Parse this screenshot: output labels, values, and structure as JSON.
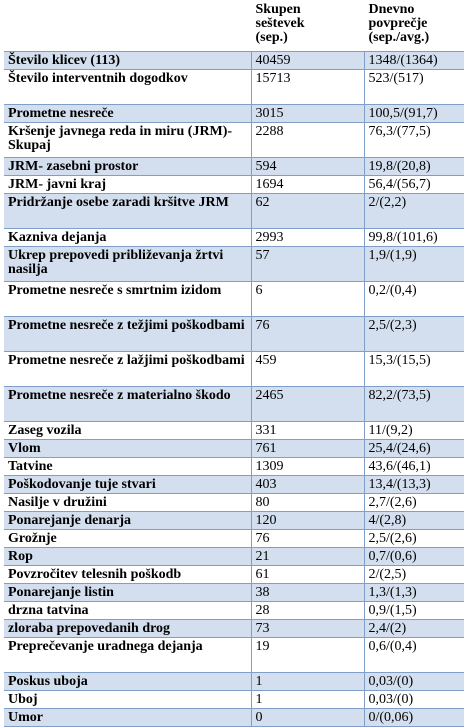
{
  "table": {
    "headers": [
      "",
      "Skupen\nseštevek\n(sep.)",
      "Dnevno\npovprečje\n(sep./avg.)"
    ],
    "rows": [
      {
        "name": "Število klicev (113)",
        "sum": "40459",
        "avg": "1348/(1364)",
        "shaded": true,
        "lines": 1
      },
      {
        "name": "Število interventnih dogodkov",
        "sum": "15713",
        "avg": "523/(517)",
        "shaded": false,
        "lines": 2
      },
      {
        "name": "Prometne nesreče",
        "sum": "3015",
        "avg": "100,5/(91,7)",
        "shaded": true,
        "lines": 1
      },
      {
        "name": "Kršenje javnega reda in miru (JRM)- Skupaj",
        "sum": "2288",
        "avg": "76,3/(77,5)",
        "shaded": false,
        "lines": 2
      },
      {
        "name": "JRM- zasebni prostor",
        "sum": "594",
        "avg": "19,8/(20,8)",
        "shaded": true,
        "lines": 1
      },
      {
        "name": "JRM- javni kraj",
        "sum": "1694",
        "avg": "56,4/(56,7)",
        "shaded": false,
        "lines": 1
      },
      {
        "name": "Pridržanje osebe zaradi kršitve JRM",
        "sum": "62",
        "avg": "2/(2,2)",
        "shaded": true,
        "lines": 2
      },
      {
        "name": "Kazniva dejanja",
        "sum": "2993",
        "avg": "99,8/(101,6)",
        "shaded": false,
        "lines": 1
      },
      {
        "name": "Ukrep prepovedi približevanja žrtvi nasilja",
        "sum": "57",
        "avg": "1,9/(1,9)",
        "shaded": true,
        "lines": 2
      },
      {
        "name": "Prometne nesreče s smrtnim izidom",
        "sum": "6",
        "avg": "0,2/(0,4)",
        "shaded": false,
        "lines": 2
      },
      {
        "name": "Prometne nesreče z težjimi poškodbami",
        "sum": "76",
        "avg": "2,5/(2,3)",
        "shaded": true,
        "lines": 2
      },
      {
        "name": "Prometne nesreče z lažjimi poškodbami",
        "sum": "459",
        "avg": "15,3/(15,5)",
        "shaded": false,
        "lines": 2
      },
      {
        "name": "Prometne nesreče z materialno škodo",
        "sum": "2465",
        "avg": "82,2/(73,5)",
        "shaded": true,
        "lines": 2
      },
      {
        "name": "Zaseg vozila",
        "sum": "331",
        "avg": "11/(9,2)",
        "shaded": false,
        "lines": 1
      },
      {
        "name": "Vlom",
        "sum": "761",
        "avg": "25,4/(24,6)",
        "shaded": true,
        "lines": 1
      },
      {
        "name": "Tatvine",
        "sum": "1309",
        "avg": "43,6/(46,1)",
        "shaded": false,
        "lines": 1
      },
      {
        "name": "Poškodovanje tuje stvari",
        "sum": "403",
        "avg": "13,4/(13,3)",
        "shaded": true,
        "lines": 1
      },
      {
        "name": "Nasilje v družini",
        "sum": "80",
        "avg": "2,7/(2,6)",
        "shaded": false,
        "lines": 1
      },
      {
        "name": "Ponarejanje denarja",
        "sum": "120",
        "avg": "4/(2,8)",
        "shaded": true,
        "lines": 1
      },
      {
        "name": "Grožnje",
        "sum": "76",
        "avg": "2,5/(2,6)",
        "shaded": false,
        "lines": 1
      },
      {
        "name": "Rop",
        "sum": "21",
        "avg": "0,7/(0,6)",
        "shaded": true,
        "lines": 1
      },
      {
        "name": "Povzročitev telesnih poškodb",
        "sum": "61",
        "avg": "2/(2,5)",
        "shaded": false,
        "lines": 1
      },
      {
        "name": "Ponarejanje listin",
        "sum": "38",
        "avg": "1,3/(1,3)",
        "shaded": true,
        "lines": 1
      },
      {
        "name": "drzna tatvina",
        "sum": "28",
        "avg": "0,9/(1,5)",
        "shaded": false,
        "lines": 1
      },
      {
        "name": "zloraba prepovedanih drog",
        "sum": "73",
        "avg": "2,4/(2)",
        "shaded": true,
        "lines": 1
      },
      {
        "name": "Preprečevanje uradnega dejanja",
        "sum": "19",
        "avg": "0,6/(0,4)",
        "shaded": false,
        "lines": 2
      },
      {
        "name": "Poskus uboja",
        "sum": "1",
        "avg": "0,03/(0)",
        "shaded": true,
        "lines": 1
      },
      {
        "name": "Uboj",
        "sum": "1",
        "avg": "0,03/(0)",
        "shaded": false,
        "lines": 1
      },
      {
        "name": "Umor",
        "sum": "0",
        "avg": "0/(0,06)",
        "shaded": true,
        "lines": 1
      }
    ]
  }
}
